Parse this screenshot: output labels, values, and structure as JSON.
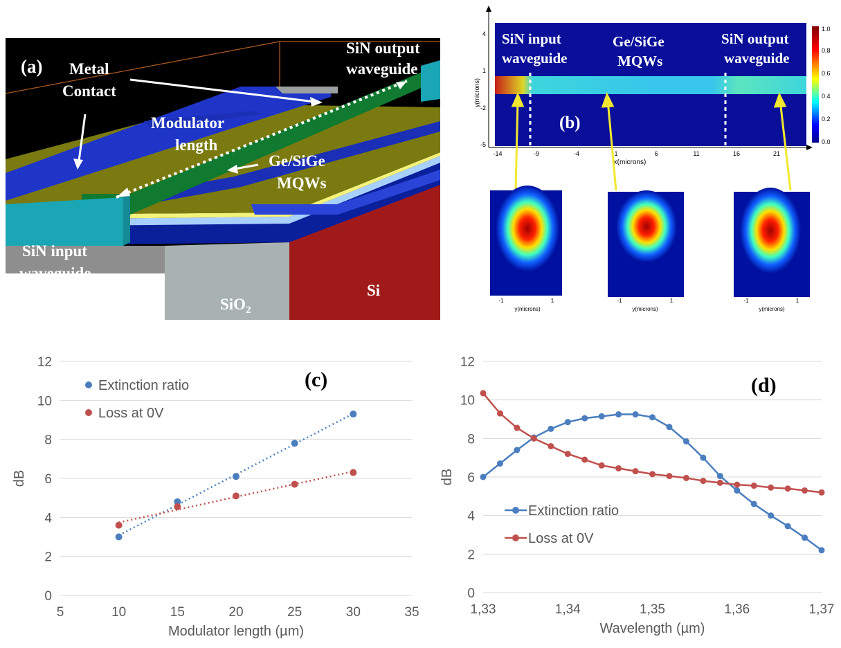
{
  "panel_a": {
    "label": "(a)",
    "metal_contact": [
      "Metal",
      "Contact"
    ],
    "modulator_length": [
      "Modulator",
      "length"
    ],
    "mqw": [
      "Ge/SiGe",
      "MQWs"
    ],
    "sin_output": [
      "SiN output",
      "waveguide"
    ],
    "sin_input": [
      "SiN input",
      "waveguide"
    ],
    "sio2_main": "SiO",
    "sio2_sub": "2",
    "si": "Si"
  },
  "panel_b": {
    "label": "(b)",
    "top_labels": [
      [
        "SiN input",
        "waveguide"
      ],
      [
        "Ge/SiGe",
        "MQWs"
      ],
      [
        "SiN output",
        "waveguide"
      ]
    ],
    "ylabel": "y(microns)",
    "xlabel": "x(microns)",
    "x_ticks": [
      "-14",
      "-9",
      "-4",
      "1",
      "6",
      "11",
      "16",
      "21"
    ],
    "y_ticks": [
      "4",
      "1",
      "-2",
      "-5"
    ],
    "colorbar_ticks": [
      "1.0",
      "0.8",
      "0.6",
      "0.4",
      "0.2",
      "0.0"
    ],
    "mode_xlabel": "y(microns)",
    "mode_ticks": [
      "-1",
      "1"
    ]
  },
  "chart_data": [
    {
      "type": "scatter",
      "panel_label": "(c)",
      "xlabel": "Modulator length (µm)",
      "ylabel": "dB",
      "xlim": [
        5,
        35
      ],
      "ylim": [
        0,
        12
      ],
      "x_ticks": [
        5,
        10,
        15,
        20,
        25,
        30,
        35
      ],
      "y_ticks": [
        0,
        2,
        4,
        6,
        8,
        10,
        12
      ],
      "grid": "horizontal",
      "legend_position": "top-left",
      "trendline": "linear-dotted",
      "series": [
        {
          "name": "Extinction ratio",
          "color": "#4a7ebf",
          "x": [
            10,
            15,
            20,
            25,
            30
          ],
          "y": [
            3.0,
            4.8,
            6.1,
            7.8,
            9.3
          ]
        },
        {
          "name": "Loss at 0V",
          "color": "#c0504d",
          "x": [
            10,
            15,
            20,
            25,
            30
          ],
          "y": [
            3.6,
            4.55,
            5.1,
            5.7,
            6.3
          ]
        }
      ]
    },
    {
      "type": "line",
      "panel_label": "(d)",
      "xlabel": "Wavelength (µm)",
      "ylabel": "dB",
      "xlim": [
        1.33,
        1.37
      ],
      "ylim": [
        0,
        12
      ],
      "x_tick_labels": [
        "1,33",
        "1,34",
        "1,35",
        "1,36",
        "1,37"
      ],
      "x_ticks": [
        1.33,
        1.34,
        1.35,
        1.36,
        1.37
      ],
      "y_ticks": [
        0,
        2,
        4,
        6,
        8,
        10,
        12
      ],
      "grid": "horizontal",
      "legend_position": "middle-left",
      "series": [
        {
          "name": "Extinction ratio",
          "color": "#4a7ebf",
          "x": [
            1.33,
            1.332,
            1.334,
            1.336,
            1.338,
            1.34,
            1.342,
            1.344,
            1.346,
            1.348,
            1.35,
            1.352,
            1.354,
            1.356,
            1.358,
            1.36,
            1.362,
            1.364,
            1.366,
            1.368,
            1.37
          ],
          "y": [
            6.0,
            6.7,
            7.4,
            8.05,
            8.5,
            8.85,
            9.05,
            9.15,
            9.25,
            9.25,
            9.1,
            8.6,
            7.85,
            7.0,
            6.05,
            5.3,
            4.6,
            4.0,
            3.45,
            2.85,
            2.2
          ]
        },
        {
          "name": "Loss at 0V",
          "color": "#c0504d",
          "x": [
            1.33,
            1.332,
            1.334,
            1.336,
            1.338,
            1.34,
            1.342,
            1.344,
            1.346,
            1.348,
            1.35,
            1.352,
            1.354,
            1.356,
            1.358,
            1.36,
            1.362,
            1.364,
            1.366,
            1.368,
            1.37
          ],
          "y": [
            10.35,
            9.3,
            8.55,
            8.0,
            7.6,
            7.2,
            6.9,
            6.6,
            6.45,
            6.3,
            6.15,
            6.05,
            5.95,
            5.8,
            5.7,
            5.6,
            5.55,
            5.45,
            5.4,
            5.3,
            5.2
          ]
        }
      ]
    }
  ]
}
